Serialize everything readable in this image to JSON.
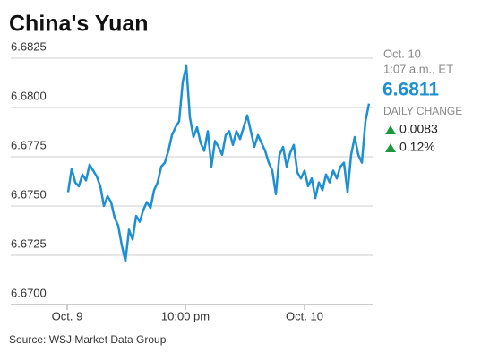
{
  "chart_data": {
    "type": "line",
    "title": "China's Yuan",
    "color": "#1e8fd2",
    "x": [
      0,
      1,
      2,
      3,
      4,
      5,
      6,
      7,
      8,
      9,
      10,
      11,
      12,
      13,
      14,
      15,
      16,
      17,
      18,
      19,
      20,
      21,
      22,
      23,
      24,
      25,
      26,
      27,
      28,
      29,
      30,
      31,
      32,
      33,
      34,
      35,
      36,
      37,
      38,
      39,
      40,
      41,
      42,
      43,
      44,
      45,
      46,
      47,
      48,
      49,
      50,
      51,
      52,
      53,
      54,
      55,
      56,
      57,
      58,
      59,
      60,
      61,
      62,
      63,
      64,
      65,
      66,
      67,
      68,
      69,
      70,
      71,
      72,
      73,
      74,
      75,
      76,
      77,
      78,
      79,
      80,
      81,
      82,
      83,
      84
    ],
    "values": [
      6.6757,
      6.6769,
      6.6762,
      6.676,
      6.6766,
      6.6763,
      6.6771,
      6.6768,
      6.6765,
      6.676,
      6.675,
      6.6755,
      6.6752,
      6.6744,
      6.674,
      6.673,
      6.6722,
      6.6738,
      6.6733,
      6.6745,
      6.6742,
      6.6748,
      6.6752,
      6.6749,
      6.6758,
      6.6762,
      6.677,
      6.6772,
      6.6778,
      6.6786,
      6.679,
      6.6793,
      6.6813,
      6.6821,
      6.6795,
      6.6785,
      6.679,
      6.6782,
      6.6778,
      6.6788,
      6.677,
      6.6783,
      6.678,
      6.6776,
      6.6786,
      6.6788,
      6.6781,
      6.6788,
      6.6784,
      6.679,
      6.6796,
      6.6788,
      6.678,
      6.6786,
      6.6782,
      6.6778,
      6.6772,
      6.6768,
      6.6756,
      6.6776,
      6.678,
      6.677,
      6.6777,
      6.6781,
      6.6767,
      6.6764,
      6.6768,
      6.676,
      6.6764,
      6.6754,
      6.6762,
      6.6758,
      6.6766,
      6.6762,
      6.6768,
      6.6764,
      6.677,
      6.6772,
      6.6757,
      6.6776,
      6.6785,
      6.6776,
      6.6772,
      6.6793,
      6.6802
    ],
    "xlim": [
      -16,
      85
    ],
    "xticks": [
      {
        "value": -0.25,
        "label": "Oct. 9"
      },
      {
        "value": 32.75,
        "label": "10:00 pm"
      },
      {
        "value": 66,
        "label": "Oct. 10"
      }
    ],
    "ylim": [
      6.67,
      6.6825
    ],
    "yticks": [
      {
        "value": 6.67,
        "label": "6.6700"
      },
      6.6725,
      {
        "value": 6.675,
        "label": "6.6750"
      },
      6.6775,
      {
        "value": 6.68,
        "label": "6.6800"
      },
      6.6825
    ],
    "grid": true
  },
  "quote": {
    "date": "Oct. 10",
    "time": "1:07 a.m., ET",
    "price": "6.6811",
    "change_label": "DAILY CHANGE",
    "change": "0.0083",
    "change_pct": "0.12%"
  },
  "source": "Source: WSJ Market Data Group"
}
